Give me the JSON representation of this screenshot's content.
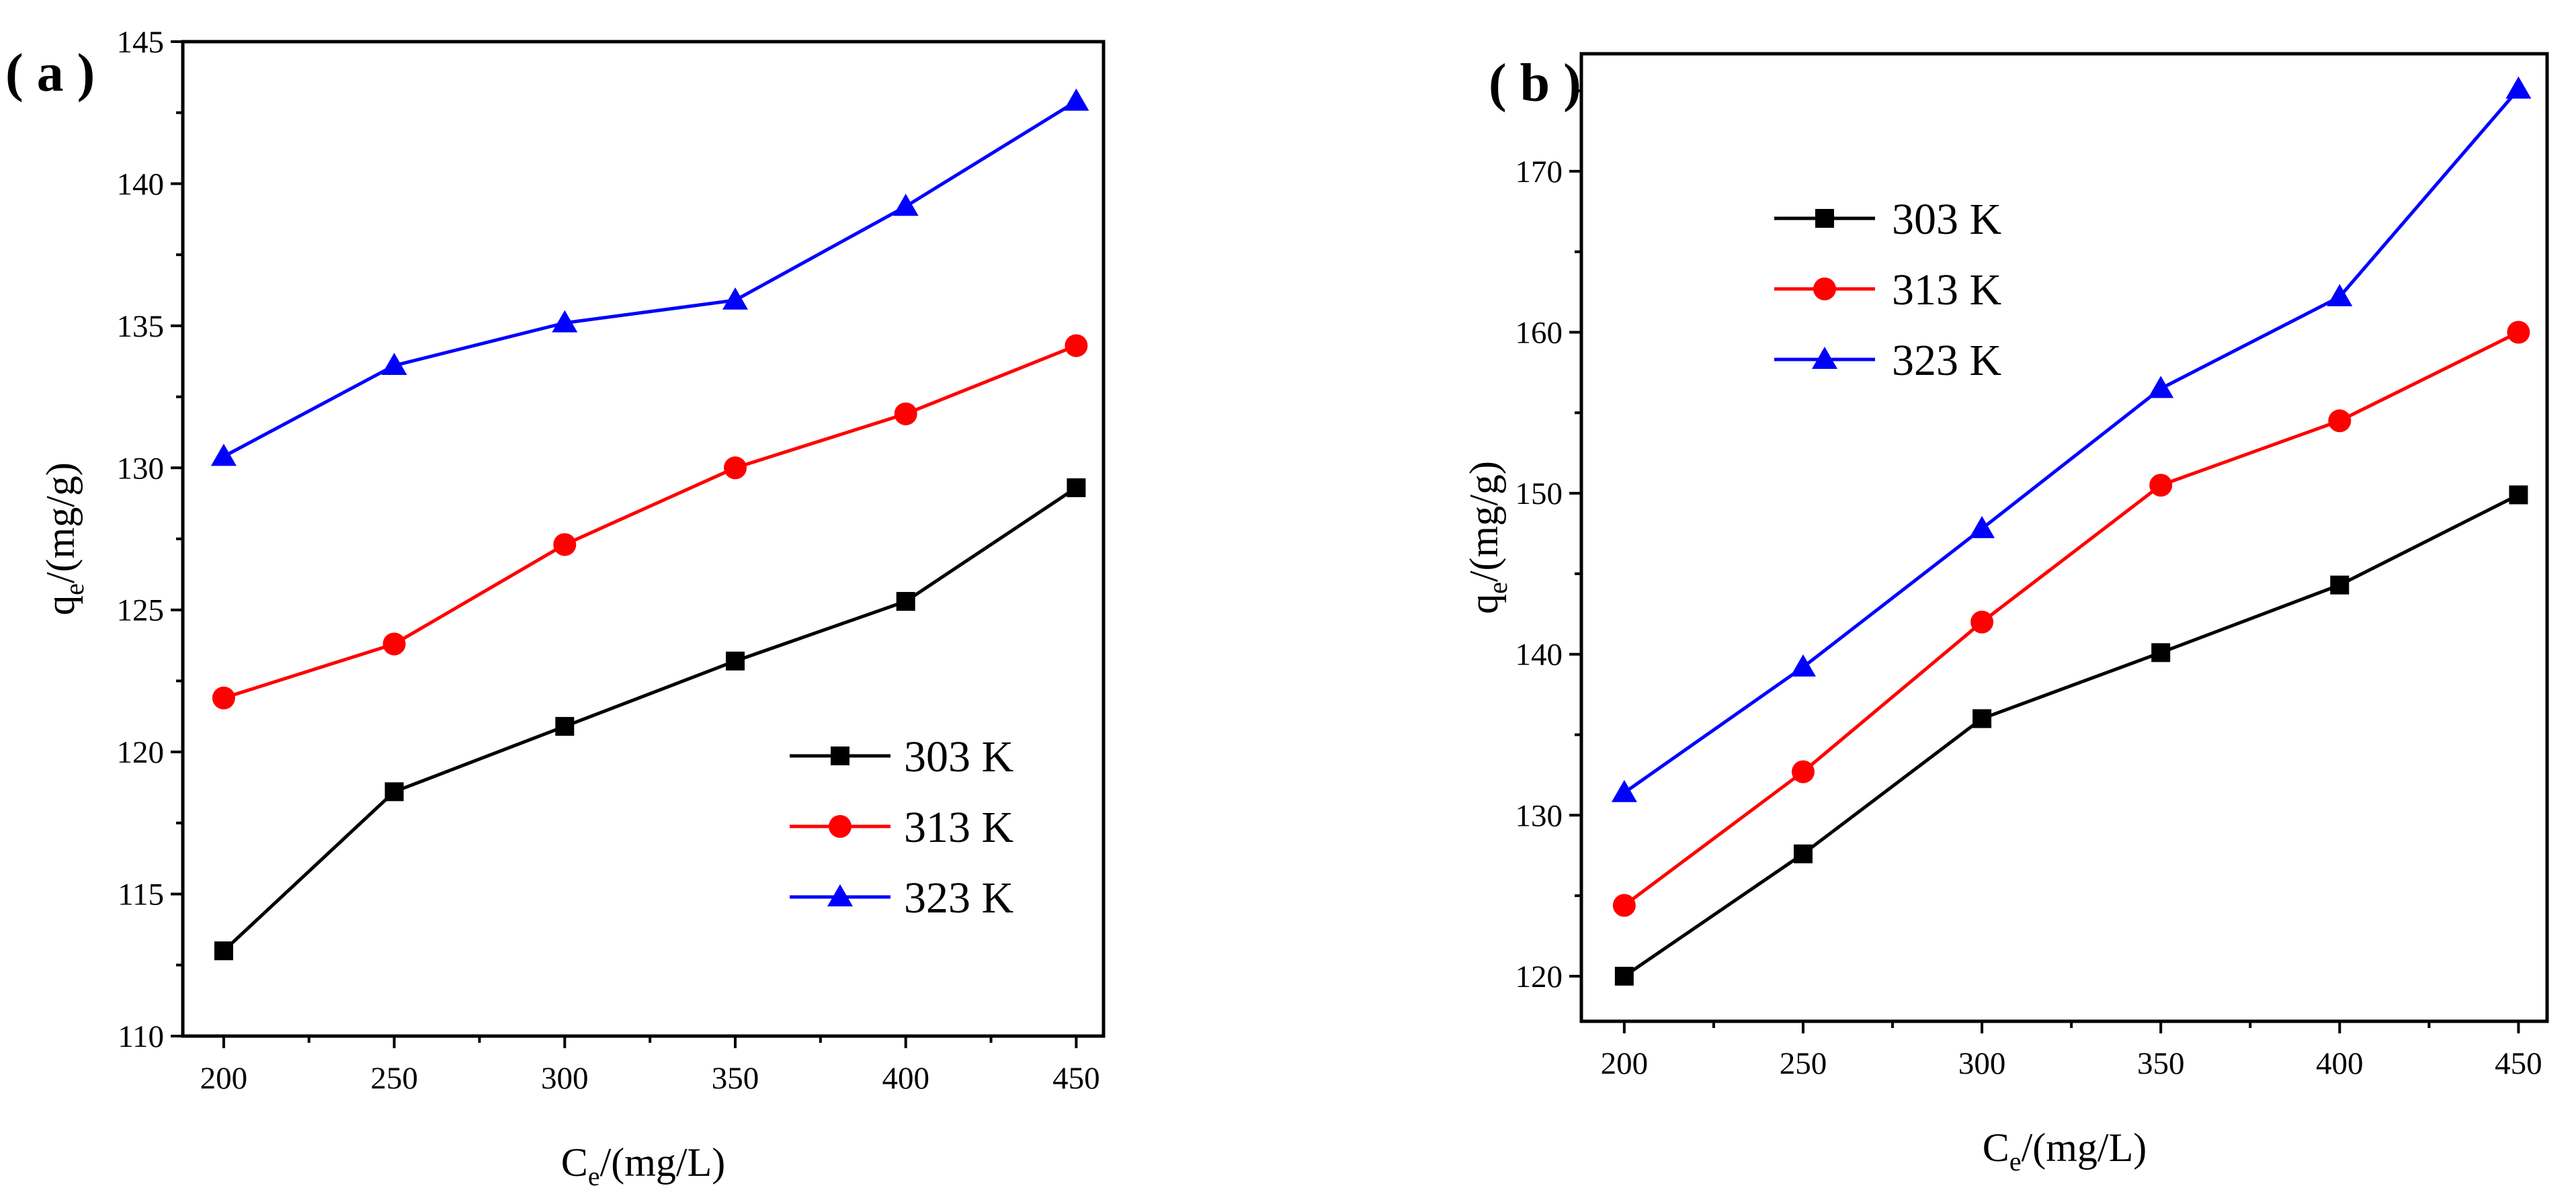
{
  "chart_data": [
    {
      "type": "line",
      "panel_label": "( a )",
      "xlabel_main": "C",
      "xlabel_sub": "e",
      "xlabel_rest": "/(mg/L)",
      "ylabel_main": "q",
      "ylabel_sub": "e",
      "ylabel_rest": "/(mg/g)",
      "x": [
        200,
        250,
        300,
        350,
        400,
        450
      ],
      "xlim": [
        188,
        458
      ],
      "ylim": [
        110,
        145
      ],
      "xticks": [
        "200",
        "250",
        "300",
        "350",
        "400",
        "450"
      ],
      "yticks": [
        "110",
        "115",
        "120",
        "125",
        "130",
        "135",
        "140",
        "145"
      ],
      "ytick_values": [
        110,
        115,
        120,
        125,
        130,
        135,
        140,
        145
      ],
      "legend_position": "bottom-right",
      "series": [
        {
          "name": "303 K",
          "color": "#000000",
          "marker": "square",
          "values": [
            113.0,
            118.6,
            120.9,
            123.2,
            125.3,
            129.3
          ]
        },
        {
          "name": "313 K",
          "color": "#ff0000",
          "marker": "circle",
          "values": [
            121.9,
            123.8,
            127.3,
            130.0,
            131.9,
            134.3
          ]
        },
        {
          "name": "323 K",
          "color": "#0000ff",
          "marker": "triangle",
          "values": [
            130.4,
            133.6,
            135.1,
            135.9,
            139.2,
            142.9
          ]
        }
      ]
    },
    {
      "type": "line",
      "panel_label": "( b )",
      "xlabel_main": "C",
      "xlabel_sub": "e",
      "xlabel_rest": "/(mg/L)",
      "ylabel_main": "q",
      "ylabel_sub": "e",
      "ylabel_rest": "/(mg/g)",
      "x": [
        200,
        250,
        300,
        350,
        400,
        450
      ],
      "xlim": [
        188,
        458
      ],
      "ylim": [
        117.2,
        177.3
      ],
      "xticks": [
        "200",
        "250",
        "300",
        "350",
        "400",
        "450"
      ],
      "yticks": [
        "120",
        "130",
        "140",
        "150",
        "160",
        "170"
      ],
      "ytick_values": [
        120,
        130,
        140,
        150,
        160,
        170
      ],
      "legend_position": "top-left",
      "series": [
        {
          "name": "303 K",
          "color": "#000000",
          "marker": "square",
          "values": [
            120.0,
            127.6,
            136.0,
            140.1,
            144.3,
            149.9
          ]
        },
        {
          "name": "313 K",
          "color": "#ff0000",
          "marker": "circle",
          "values": [
            124.4,
            132.7,
            142.0,
            150.5,
            154.5,
            160.0
          ]
        },
        {
          "name": "323 K",
          "color": "#0000ff",
          "marker": "triangle",
          "values": [
            131.4,
            139.2,
            147.8,
            156.5,
            162.2,
            175.1
          ]
        }
      ]
    }
  ]
}
